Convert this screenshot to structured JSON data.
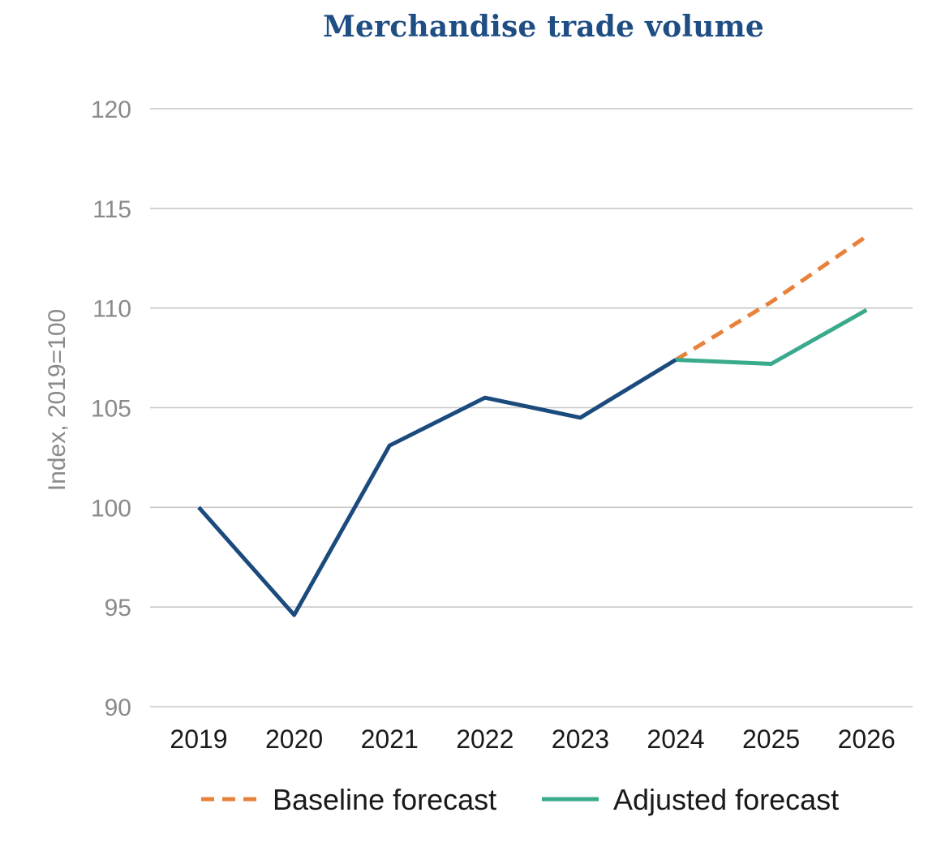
{
  "chart_data": {
    "type": "line",
    "title": "Merchandise trade volume",
    "ylabel": "Index, 2019=100",
    "xlabel": "",
    "x": [
      "2019",
      "2020",
      "2021",
      "2022",
      "2023",
      "2024",
      "2025",
      "2026"
    ],
    "ylim": [
      90,
      120
    ],
    "yticks": [
      90,
      95,
      100,
      105,
      110,
      115,
      120
    ],
    "grid": true,
    "legend_position": "bottom",
    "series": [
      {
        "key": "actual",
        "values": [
          100,
          94.6,
          103.1,
          105.5,
          104.5,
          107.4,
          null,
          null
        ],
        "color": "#1b4a7d",
        "style": "solid",
        "in_legend": false
      },
      {
        "key": "baseline",
        "name": "Baseline forecast",
        "values": [
          null,
          null,
          null,
          null,
          null,
          107.4,
          110.3,
          113.6
        ],
        "color": "#e8823a",
        "style": "dashed",
        "in_legend": true
      },
      {
        "key": "adjusted",
        "name": "Adjusted forecast",
        "values": [
          null,
          null,
          null,
          null,
          null,
          107.4,
          107.2,
          109.9
        ],
        "color": "#3aaa8c",
        "style": "solid",
        "in_legend": true
      }
    ],
    "colors": {
      "title": "#1f4e84",
      "grid": "#c8c8c8",
      "axis_text": "#8a8a8a",
      "tick_text": "#1a1a1a"
    }
  }
}
